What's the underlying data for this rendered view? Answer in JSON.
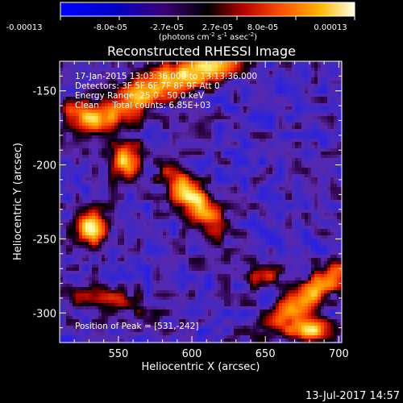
{
  "chart_data": {
    "type": "heatmap",
    "title": "Reconstructed RHESSI Image",
    "xlabel": "Heliocentric X (arcsec)",
    "ylabel": "Heliocentric Y (arcsec)",
    "xlim": [
      510,
      702
    ],
    "ylim": [
      -320,
      -130
    ],
    "x_ticks": [
      550,
      600,
      650,
      700
    ],
    "y_ticks": [
      -150,
      -200,
      -250,
      -300
    ],
    "colorbar": {
      "tick_labels": [
        "-0.00013",
        "-8.0e-05",
        "-2.7e-05",
        "2.7e-05",
        "8.0e-05",
        "0.00013"
      ],
      "range": [
        -0.00013,
        0.00013
      ],
      "unit_label_parts": [
        "(photons cm",
        "-2",
        " s",
        "-1",
        " asec",
        "-2",
        ")"
      ]
    },
    "info_lines": [
      "17-Jan-2015 13:03:36.000 to 13:13:36.000",
      "Detectors: 3F 5F 6F 7F 8F 9F Att 0",
      "Energy Range: 25.0 - 50.0 keV",
      "Clean     Total counts: 6.85E+03"
    ],
    "peak_label": "Position of Peak = [531,-242]",
    "peak": {
      "x": 531,
      "y": -242
    },
    "sources": [
      {
        "x": 531,
        "y": -242,
        "sx": 7,
        "sy": 8,
        "level": 1.0
      },
      {
        "x": 555,
        "y": -197,
        "sx": 6,
        "sy": 8,
        "level": 0.88
      },
      {
        "x": 600,
        "y": -222,
        "sx": 18,
        "sy": 7,
        "angle": -50,
        "level": 0.95
      },
      {
        "x": 570,
        "y": -150,
        "sx": 28,
        "sy": 8,
        "angle": 30,
        "level": 0.8
      },
      {
        "x": 612,
        "y": -135,
        "sx": 14,
        "sy": 7,
        "angle": 20,
        "level": 0.85
      },
      {
        "x": 530,
        "y": -168,
        "sx": 14,
        "sy": 6,
        "angle": -20,
        "level": 0.6
      },
      {
        "x": 680,
        "y": -288,
        "sx": 26,
        "sy": 6,
        "angle": 38,
        "level": 0.85
      },
      {
        "x": 680,
        "y": -312,
        "sx": 10,
        "sy": 5,
        "level": 0.9
      },
      {
        "x": 650,
        "y": -275,
        "sx": 8,
        "sy": 5,
        "level": 0.45
      },
      {
        "x": 540,
        "y": -290,
        "sx": 22,
        "sy": 5,
        "angle": -10,
        "level": 0.45
      }
    ],
    "date_stamp": "13-Jul-2017 14:57"
  },
  "colors": {
    "background": "#000000",
    "text": "#ffffff"
  }
}
